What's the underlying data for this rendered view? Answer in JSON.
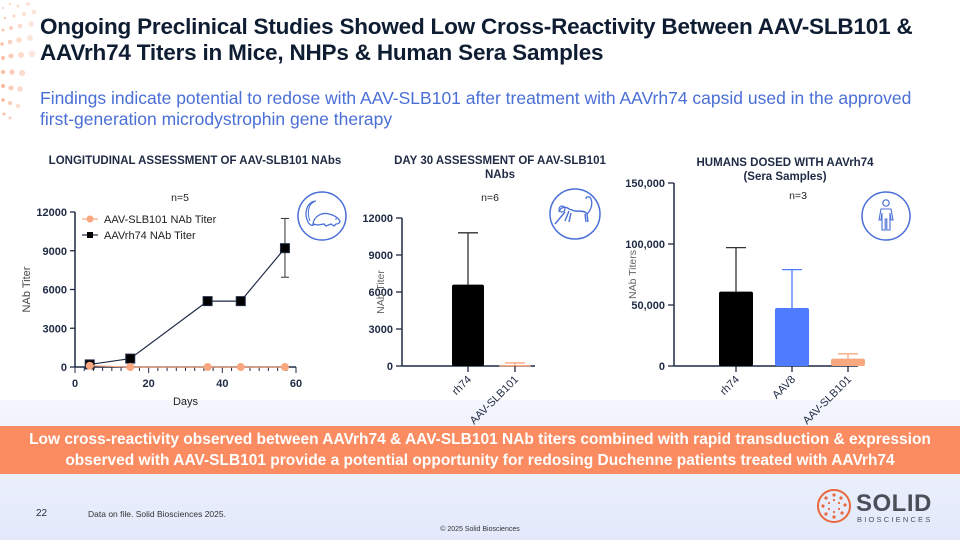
{
  "slide": {
    "title": "Ongoing Preclinical Studies Showed Low Cross-Reactivity Between AAV-SLB101 & AAVrh74 Titers in Mice, NHPs & Human Sera Samples",
    "subtitle": "Findings indicate potential to redose with AAV-SLB101 after treatment with AAVrh74 capsid used in the approved first-generation microdystrophin gene therapy",
    "banner": "Low cross-reactivity observed between AAVrh74 & AAV-SLB101 NAb titers combined with rapid transduction & expression observed with AAV-SLB101 provide a potential opportunity for redosing Duchenne patients treated with AAVrh74",
    "page_number": "22",
    "footnote": "Data on file. Solid Biosciences 2025.",
    "copyright": "© 2025 Solid Biosciences",
    "logo": {
      "name": "SOLID",
      "sub": "BIOSCIENCES"
    },
    "colors": {
      "title": "#0f1d33",
      "subtitle": "#4a6fd6",
      "banner": "#fb8b60",
      "rh74": "#000000",
      "aav8": "#4f7bff",
      "slb101": "#f9a77e",
      "icon": "#4a6fd6"
    }
  },
  "chart_data": [
    {
      "type": "line",
      "title": "LONGITUDINAL ASSESSMENT OF AAV-SLB101 NAbs",
      "n_label": "n=5",
      "icon": "mouse-icon",
      "xlabel": "Days",
      "ylabel": "NAb Titer",
      "xlim": [
        0,
        60
      ],
      "ylim": [
        0,
        12000
      ],
      "xticks": [
        "0",
        "20",
        "40",
        "60"
      ],
      "yticks": [
        "0",
        "3000",
        "6000",
        "9000",
        "12000"
      ],
      "legend_position": "top-left",
      "series": [
        {
          "name": "AAV-SLB101 NAb Titer",
          "marker": "circle",
          "color": "#f9a77e",
          "x": [
            4,
            15,
            36,
            45,
            57
          ],
          "y": [
            100,
            0,
            0,
            0,
            0
          ]
        },
        {
          "name": "AAVrh74 NAb Titer",
          "marker": "square",
          "color": "#000000",
          "x": [
            4,
            15,
            36,
            45,
            57
          ],
          "y": [
            200,
            650,
            5100,
            5100,
            9200
          ],
          "error": [
            null,
            null,
            null,
            null,
            [
              6950,
              11500
            ]
          ]
        }
      ]
    },
    {
      "type": "bar",
      "title": "DAY 30 ASSESSMENT OF AAV-SLB101 NAbs",
      "n_label": "n=6",
      "icon": "monkey-icon",
      "xlabel": "",
      "ylabel": "NAb Titer",
      "ylim": [
        0,
        12000
      ],
      "yticks": [
        "0",
        "3000",
        "6000",
        "9000",
        "12000"
      ],
      "categories": [
        "rh74",
        "AAV-SLB101"
      ],
      "values": [
        6600,
        80
      ],
      "error_top": [
        10800,
        250
      ],
      "colors": [
        "#000000",
        "#f9a77e"
      ]
    },
    {
      "type": "bar",
      "title": "HUMANS DOSED WITH AAVrh74",
      "title_line2": "(Sera Samples)",
      "n_label": "n=3",
      "icon": "human-icon",
      "xlabel": "",
      "ylabel": "NAb Titers",
      "ylim": [
        0,
        150000
      ],
      "yticks": [
        "0",
        "50,000",
        "100,000",
        "150,000"
      ],
      "categories": [
        "rh74",
        "AAV8",
        "AAV-SLB101"
      ],
      "values": [
        61000,
        47500,
        6000
      ],
      "error_top": [
        97000,
        79000,
        10000
      ],
      "colors": [
        "#000000",
        "#4f7bff",
        "#f9a77e"
      ]
    }
  ]
}
